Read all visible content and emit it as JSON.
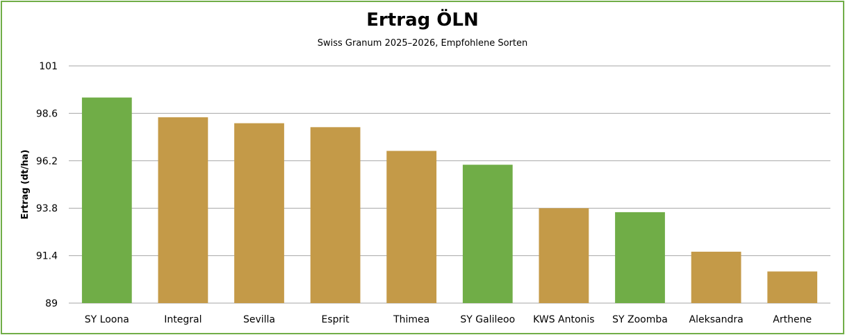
{
  "chart_data": {
    "type": "bar",
    "title": "Ertrag ÖLN",
    "subtitle": "Swiss Granum 2025–2026, Empfohlene Sorten",
    "xlabel": "",
    "ylabel": "Ertrag (dt/ha)",
    "ylim": [
      89,
      101
    ],
    "yticks": [
      "89",
      "91.4",
      "93.8",
      "96.2",
      "98.6",
      "101"
    ],
    "ytick_values": [
      89,
      91.4,
      93.8,
      96.2,
      98.6,
      101
    ],
    "grid": true,
    "legend": "none",
    "categories": [
      "SY Loona",
      "Integral",
      "Sevilla",
      "Esprit",
      "Thimea",
      "SY Galileoo",
      "KWS Antonis",
      "SY Zoomba",
      "Aleksandra",
      "Arthene"
    ],
    "values": [
      99.4,
      98.4,
      98.1,
      97.9,
      96.7,
      96.0,
      93.8,
      93.6,
      91.6,
      90.6
    ],
    "bar_colors": [
      "#70ad47",
      "#c49a48",
      "#c49a48",
      "#c49a48",
      "#c49a48",
      "#70ad47",
      "#c49a48",
      "#70ad47",
      "#c49a48",
      "#c49a48"
    ],
    "colors": {
      "green": "#70ad47",
      "gold": "#c49a48",
      "grid": "#a6a6a6",
      "border": "#70ad47"
    }
  }
}
